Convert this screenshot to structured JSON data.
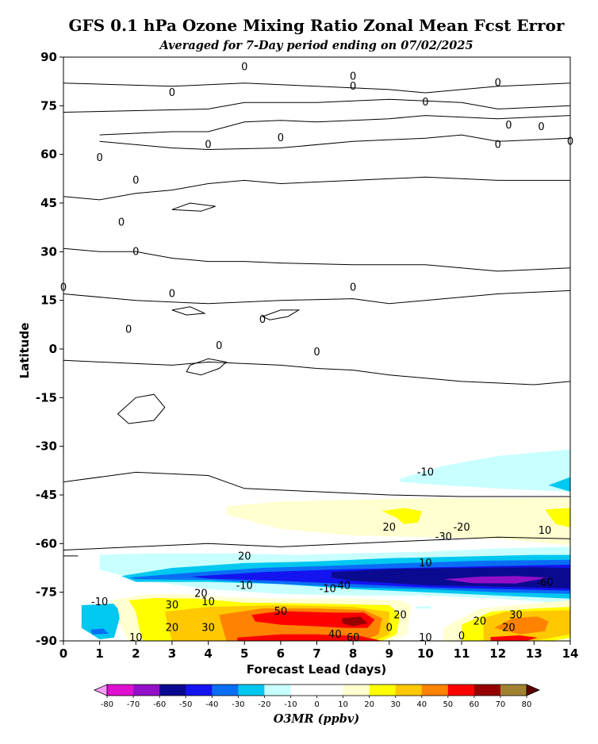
{
  "chart_data": {
    "type": "heatmap",
    "subtype": "filled-contour",
    "title": "GFS 0.1 hPa Ozone Mixing Ratio Zonal Mean Fcst Error",
    "subtitle": "Averaged for 7-Day period ending on 07/02/2025",
    "xlabel": "Forecast Lead (days)",
    "ylabel": "Latitude",
    "xlim": [
      0,
      14
    ],
    "ylim": [
      -90,
      90
    ],
    "x_ticks": [
      0,
      1,
      2,
      3,
      4,
      5,
      6,
      7,
      8,
      9,
      10,
      11,
      12,
      13,
      14
    ],
    "y_ticks": [
      90,
      75,
      60,
      45,
      30,
      15,
      0,
      -15,
      -30,
      -45,
      -60,
      -75,
      -90
    ],
    "colorbar": {
      "label": "O3MR (ppbv)",
      "levels": [
        -80,
        -70,
        -60,
        -50,
        -40,
        -30,
        -20,
        -10,
        0,
        10,
        20,
        30,
        40,
        50,
        60,
        70,
        80
      ],
      "colors": [
        "#e010d0",
        "#9410c8",
        "#0a0a90",
        "#1414f0",
        "#0a6ef5",
        "#00c8f0",
        "#c8ffff",
        "#ffffff",
        "#ffffff",
        "#ffffd0",
        "#ffff00",
        "#ffc800",
        "#ff8200",
        "#ff0000",
        "#960000",
        "#a08232"
      ],
      "under_color": "#ff9cff",
      "over_color": "#5a0000"
    },
    "regions": [
      {
        "value_range": [
          -20,
          -10
        ],
        "lat_range": [
          -45,
          -35
        ],
        "lead_range": [
          9.5,
          14
        ]
      },
      {
        "value_range": [
          10,
          20
        ],
        "lat_range": [
          -58,
          -46
        ],
        "lead_range": [
          4.5,
          14
        ]
      },
      {
        "value_range": [
          20,
          30
        ],
        "lat_range": [
          -55,
          -50
        ],
        "lead_range": [
          9,
          9.5
        ]
      },
      {
        "value_range": [
          -30,
          -10
        ],
        "lat_range": [
          -72,
          -64
        ],
        "lead_range": [
          1.5,
          14
        ]
      },
      {
        "value_range": [
          -70,
          -40
        ],
        "lat_range": [
          -74,
          -68
        ],
        "lead_range": [
          7.5,
          14
        ]
      },
      {
        "value_range": [
          30,
          70
        ],
        "lat_range": [
          -90,
          -80
        ],
        "lead_range": [
          4.5,
          9
        ]
      },
      {
        "value_range": [
          20,
          50
        ],
        "lat_range": [
          -90,
          -80
        ],
        "lead_range": [
          11,
          14
        ]
      }
    ],
    "contour_labels": [
      "0",
      "0",
      "0",
      "0",
      "0",
      "0",
      "0",
      "0",
      "0",
      "0",
      "0",
      "0",
      "0",
      "0",
      "0",
      "0",
      "0",
      "0",
      "0",
      "0",
      "0",
      "0",
      "0",
      "-10",
      "20",
      "20",
      "10",
      "-20",
      "-30",
      "-10",
      "10",
      "-10",
      "-40",
      "-60",
      "20",
      "10",
      "-10",
      "30",
      "50",
      "20",
      "30",
      "10",
      "20",
      "40",
      "60",
      "30",
      "20",
      "0",
      "20",
      "10",
      "0"
    ]
  }
}
